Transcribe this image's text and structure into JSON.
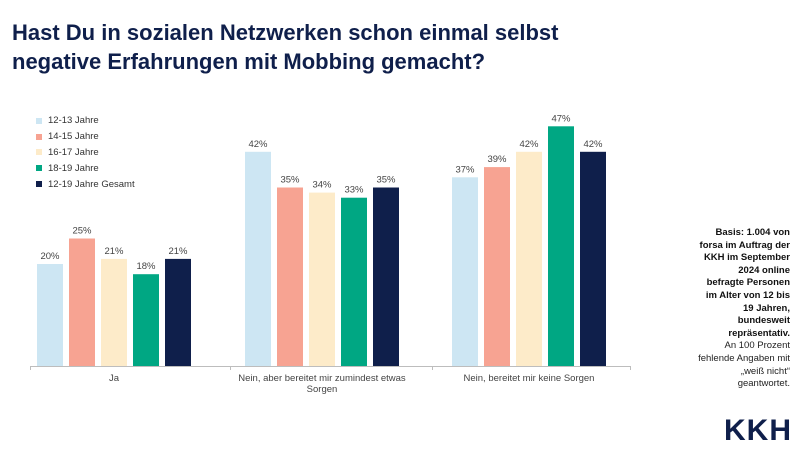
{
  "title_line1": "Hast Du in sozialen Netzwerken schon einmal selbst",
  "title_line2": "negative Erfahrungen mit Mobbing gemacht?",
  "chart_data": {
    "type": "bar",
    "title": "Hast Du in sozialen Netzwerken schon einmal selbst negative Erfahrungen mit Mobbing gemacht?",
    "categories": [
      "Ja",
      "Nein, aber bereitet mir zumindest etwas Sorgen",
      "Nein, bereitet mir keine Sorgen"
    ],
    "category_lines": [
      [
        "Ja"
      ],
      [
        "Nein, aber bereitet mir zumindest etwas",
        "Sorgen"
      ],
      [
        "Nein, bereitet mir keine Sorgen"
      ]
    ],
    "series": [
      {
        "name": "12-13 Jahre",
        "color": "#cde6f3",
        "values": [
          20,
          42,
          37
        ]
      },
      {
        "name": "14-15 Jahre",
        "color": "#f7a392",
        "values": [
          25,
          35,
          39
        ]
      },
      {
        "name": "16-17 Jahre",
        "color": "#fdebc9",
        "values": [
          21,
          34,
          42
        ]
      },
      {
        "name": "18-19 Jahre",
        "color": "#00a783",
        "values": [
          18,
          33,
          47
        ]
      },
      {
        "name": "12-19 Jahre Gesamt",
        "color": "#0f1f4b",
        "values": [
          21,
          35,
          42
        ]
      }
    ],
    "value_suffix": "%",
    "legend_position": "top-left",
    "grid": false,
    "ylim": [
      0,
      50
    ]
  },
  "basis": {
    "bold_lines": [
      "Basis: 1.004 von",
      "forsa im Auftrag der",
      "KKH im September",
      "2024 online",
      "befragte Personen",
      "im Alter von 12 bis",
      "19 Jahren,",
      "bundesweit",
      "repräsentativ."
    ],
    "normal_lines": [
      "An 100 Prozent",
      "fehlende Angaben mit",
      "„weiß nicht“",
      "geantwortet."
    ]
  },
  "logo": "KKH"
}
